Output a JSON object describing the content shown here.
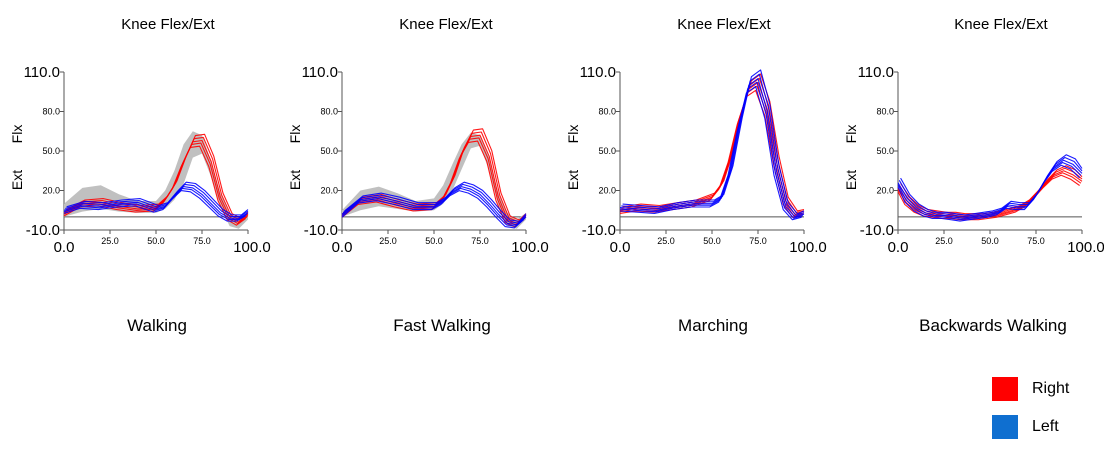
{
  "series_colors": {
    "right": "#ff0000",
    "left": "#0000ff",
    "band": "#c0c0c0"
  },
  "legend": [
    {
      "label": "Right",
      "color": "#ff0000"
    },
    {
      "label": "Left",
      "color": "#0f6fd0"
    }
  ],
  "chart_data": [
    {
      "type": "line",
      "title": "Knee Flex/Ext",
      "activity": "Walking",
      "ylabel_top": "Flx",
      "ylabel_bottom": "Ext",
      "xlim": [
        0,
        100
      ],
      "ylim": [
        -10,
        110
      ],
      "xticks": [
        "0.0",
        "25.0",
        "50.0",
        "75.0",
        "100.0"
      ],
      "yticks": [
        "110.0",
        "80.0",
        "50.0",
        "20.0",
        "-10.0"
      ],
      "band_upper": {
        "x": [
          0,
          10,
          20,
          30,
          40,
          50,
          55,
          60,
          65,
          70,
          75,
          80,
          85,
          90,
          95,
          100
        ],
        "y": [
          10,
          22,
          24,
          17,
          12,
          12,
          20,
          35,
          55,
          65,
          62,
          42,
          18,
          2,
          -2,
          3
        ]
      },
      "band_lower": {
        "x": [
          0,
          10,
          20,
          30,
          40,
          50,
          55,
          60,
          65,
          70,
          75,
          80,
          85,
          90,
          95,
          100
        ],
        "y": [
          0,
          4,
          6,
          4,
          3,
          3,
          6,
          13,
          25,
          45,
          48,
          30,
          8,
          -7,
          -9,
          -2
        ]
      },
      "series": [
        {
          "name": "Right",
          "x": [
            0,
            10,
            20,
            30,
            40,
            50,
            55,
            60,
            65,
            70,
            75,
            80,
            85,
            90,
            95,
            100
          ],
          "y": [
            3,
            10,
            11,
            8,
            6,
            7,
            13,
            24,
            42,
            57,
            58,
            42,
            15,
            0,
            -4,
            1
          ]
        },
        {
          "name": "Left",
          "x": [
            0,
            10,
            20,
            30,
            40,
            50,
            55,
            60,
            65,
            70,
            75,
            80,
            85,
            90,
            95,
            100
          ],
          "y": [
            5,
            9,
            8,
            10,
            11,
            6,
            8,
            16,
            23,
            22,
            17,
            10,
            3,
            -1,
            -1,
            3
          ]
        }
      ]
    },
    {
      "type": "line",
      "title": "Knee Flex/Ext",
      "activity": "Fast Walking",
      "ylabel_top": "Flx",
      "ylabel_bottom": "Ext",
      "xlim": [
        0,
        100
      ],
      "ylim": [
        -10,
        110
      ],
      "xticks": [
        "0.0",
        "25.0",
        "50.0",
        "75.0",
        "100.0"
      ],
      "yticks": [
        "110.0",
        "80.0",
        "50.0",
        "20.0",
        "-10.0"
      ],
      "band_upper": {
        "x": [
          0,
          10,
          20,
          30,
          40,
          50,
          55,
          60,
          65,
          70,
          75,
          80,
          85,
          90,
          95,
          100
        ],
        "y": [
          5,
          20,
          23,
          18,
          12,
          14,
          24,
          40,
          55,
          64,
          62,
          45,
          18,
          3,
          -2,
          3
        ]
      },
      "band_lower": {
        "x": [
          0,
          10,
          20,
          30,
          40,
          50,
          55,
          60,
          65,
          70,
          75,
          80,
          85,
          90,
          95,
          100
        ],
        "y": [
          0,
          5,
          8,
          6,
          4,
          5,
          10,
          20,
          36,
          52,
          54,
          35,
          8,
          -7,
          -9,
          -2
        ]
      },
      "series": [
        {
          "name": "Right",
          "x": [
            0,
            10,
            20,
            30,
            40,
            50,
            55,
            60,
            65,
            70,
            75,
            80,
            85,
            90,
            95,
            100
          ],
          "y": [
            2,
            12,
            14,
            10,
            7,
            8,
            14,
            28,
            48,
            61,
            62,
            46,
            15,
            -2,
            -5,
            0
          ]
        },
        {
          "name": "Left",
          "x": [
            0,
            10,
            20,
            30,
            40,
            50,
            55,
            60,
            65,
            70,
            75,
            80,
            85,
            90,
            95,
            100
          ],
          "y": [
            2,
            13,
            15,
            12,
            8,
            8,
            12,
            19,
            23,
            21,
            17,
            10,
            2,
            -5,
            -6,
            0
          ]
        }
      ]
    },
    {
      "type": "line",
      "title": "Knee Flex/Ext",
      "activity": "Marching",
      "ylabel_top": "Flx",
      "ylabel_bottom": "Ext",
      "xlim": [
        0,
        100
      ],
      "ylim": [
        -10,
        110
      ],
      "xticks": [
        "0.0",
        "25.0",
        "50.0",
        "75.0",
        "100.0"
      ],
      "yticks": [
        "110.0",
        "80.0",
        "50.0",
        "20.0",
        "-10.0"
      ],
      "series": [
        {
          "name": "Right",
          "x": [
            0,
            10,
            20,
            30,
            40,
            50,
            55,
            60,
            65,
            70,
            75,
            80,
            85,
            90,
            95,
            100
          ],
          "y": [
            5,
            7,
            6,
            8,
            10,
            15,
            24,
            45,
            75,
            97,
            102,
            82,
            42,
            12,
            2,
            3
          ]
        },
        {
          "name": "Left",
          "x": [
            0,
            10,
            20,
            30,
            40,
            50,
            55,
            60,
            65,
            70,
            75,
            80,
            85,
            90,
            95,
            100
          ],
          "y": [
            7,
            6,
            5,
            8,
            10,
            10,
            14,
            35,
            70,
            100,
            105,
            80,
            35,
            8,
            0,
            2
          ]
        }
      ]
    },
    {
      "type": "line",
      "title": "Knee Flex/Ext",
      "activity": "Backwards Walking",
      "ylabel_top": "Flx",
      "ylabel_bottom": "Ext",
      "xlim": [
        0,
        100
      ],
      "ylim": [
        -10,
        110
      ],
      "xticks": [
        "0.0",
        "25.0",
        "50.0",
        "75.0",
        "100.0"
      ],
      "yticks": [
        "110.0",
        "80.0",
        "50.0",
        "20.0",
        "-10.0"
      ],
      "series": [
        {
          "name": "Right",
          "x": [
            0,
            5,
            10,
            15,
            20,
            25,
            30,
            35,
            40,
            45,
            50,
            55,
            60,
            65,
            70,
            75,
            80,
            85,
            90,
            95,
            100
          ],
          "y": [
            22,
            12,
            6,
            3,
            2,
            1,
            1,
            0,
            0,
            0,
            1,
            2,
            4,
            6,
            10,
            17,
            25,
            32,
            35,
            32,
            27
          ]
        },
        {
          "name": "Left",
          "x": [
            0,
            5,
            10,
            15,
            20,
            25,
            30,
            35,
            40,
            45,
            50,
            55,
            60,
            65,
            70,
            75,
            80,
            85,
            90,
            95,
            100
          ],
          "y": [
            26,
            14,
            7,
            3,
            1,
            1,
            0,
            -1,
            0,
            1,
            2,
            4,
            9,
            8,
            8,
            16,
            28,
            38,
            43,
            40,
            33
          ]
        }
      ]
    }
  ]
}
